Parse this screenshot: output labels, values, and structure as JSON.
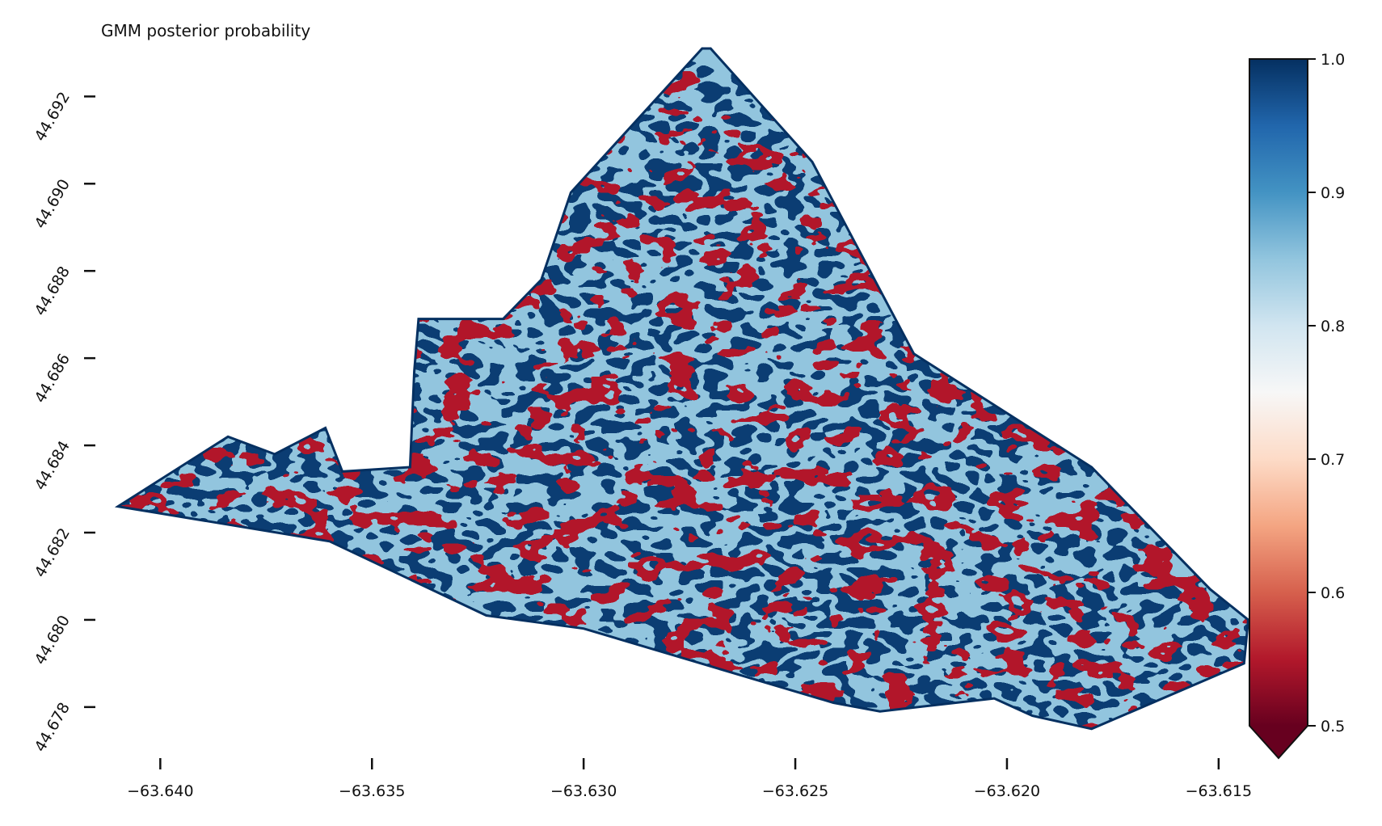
{
  "title": "GMM posterior probability",
  "x_axis": {
    "ticks": [
      "−63.640",
      "−63.635",
      "−63.630",
      "−63.625",
      "−63.620",
      "−63.615"
    ],
    "tick_values": [
      -63.64,
      -63.635,
      -63.63,
      -63.625,
      -63.62,
      -63.615
    ],
    "range": [
      -63.6414,
      -63.6141
    ]
  },
  "y_axis": {
    "ticks": [
      "44.678",
      "44.680",
      "44.682",
      "44.684",
      "44.686",
      "44.688",
      "44.690",
      "44.692"
    ],
    "tick_values": [
      44.678,
      44.68,
      44.682,
      44.684,
      44.686,
      44.688,
      44.69,
      44.692
    ],
    "range": [
      44.6767,
      44.6931
    ]
  },
  "colorbar": {
    "colormap": "RdBu",
    "range": [
      0.5,
      1.0
    ],
    "extend": "min",
    "ticks": [
      "0.5",
      "0.6",
      "0.7",
      "0.8",
      "0.9",
      "1.0"
    ],
    "tick_values": [
      0.5,
      0.6,
      0.7,
      0.8,
      0.9,
      1.0
    ],
    "colors": [
      "#67001f",
      "#b2182b",
      "#d6604d",
      "#f4a582",
      "#fddbc7",
      "#f7f7f7",
      "#d1e5f0",
      "#92c5de",
      "#4393c3",
      "#2166ac",
      "#053061"
    ]
  },
  "map": {
    "boundary_lonlat": [
      [
        -63.641,
        44.6826
      ],
      [
        -63.6384,
        44.6842
      ],
      [
        -63.6373,
        44.6838
      ],
      [
        -63.6361,
        44.6844
      ],
      [
        -63.6357,
        44.6834
      ],
      [
        -63.6341,
        44.6835
      ],
      [
        -63.634,
        44.6857
      ],
      [
        -63.6339,
        44.6869
      ],
      [
        -63.6319,
        44.6869
      ],
      [
        -63.631,
        44.6878
      ],
      [
        -63.6303,
        44.6898
      ],
      [
        -63.6272,
        44.6931
      ],
      [
        -63.627,
        44.6931
      ],
      [
        -63.6246,
        44.6905
      ],
      [
        -63.6222,
        44.6861
      ],
      [
        -63.618,
        44.6835
      ],
      [
        -63.6152,
        44.6807
      ],
      [
        -63.6143,
        44.68
      ],
      [
        -63.6144,
        44.679
      ],
      [
        -63.618,
        44.6775
      ],
      [
        -63.6194,
        44.6778
      ],
      [
        -63.6203,
        44.6782
      ],
      [
        -63.623,
        44.6779
      ],
      [
        -63.6241,
        44.6781
      ],
      [
        -63.63,
        44.6798
      ],
      [
        -63.6323,
        44.6801
      ],
      [
        -63.636,
        44.6818
      ],
      [
        -63.641,
        44.6826
      ]
    ]
  }
}
